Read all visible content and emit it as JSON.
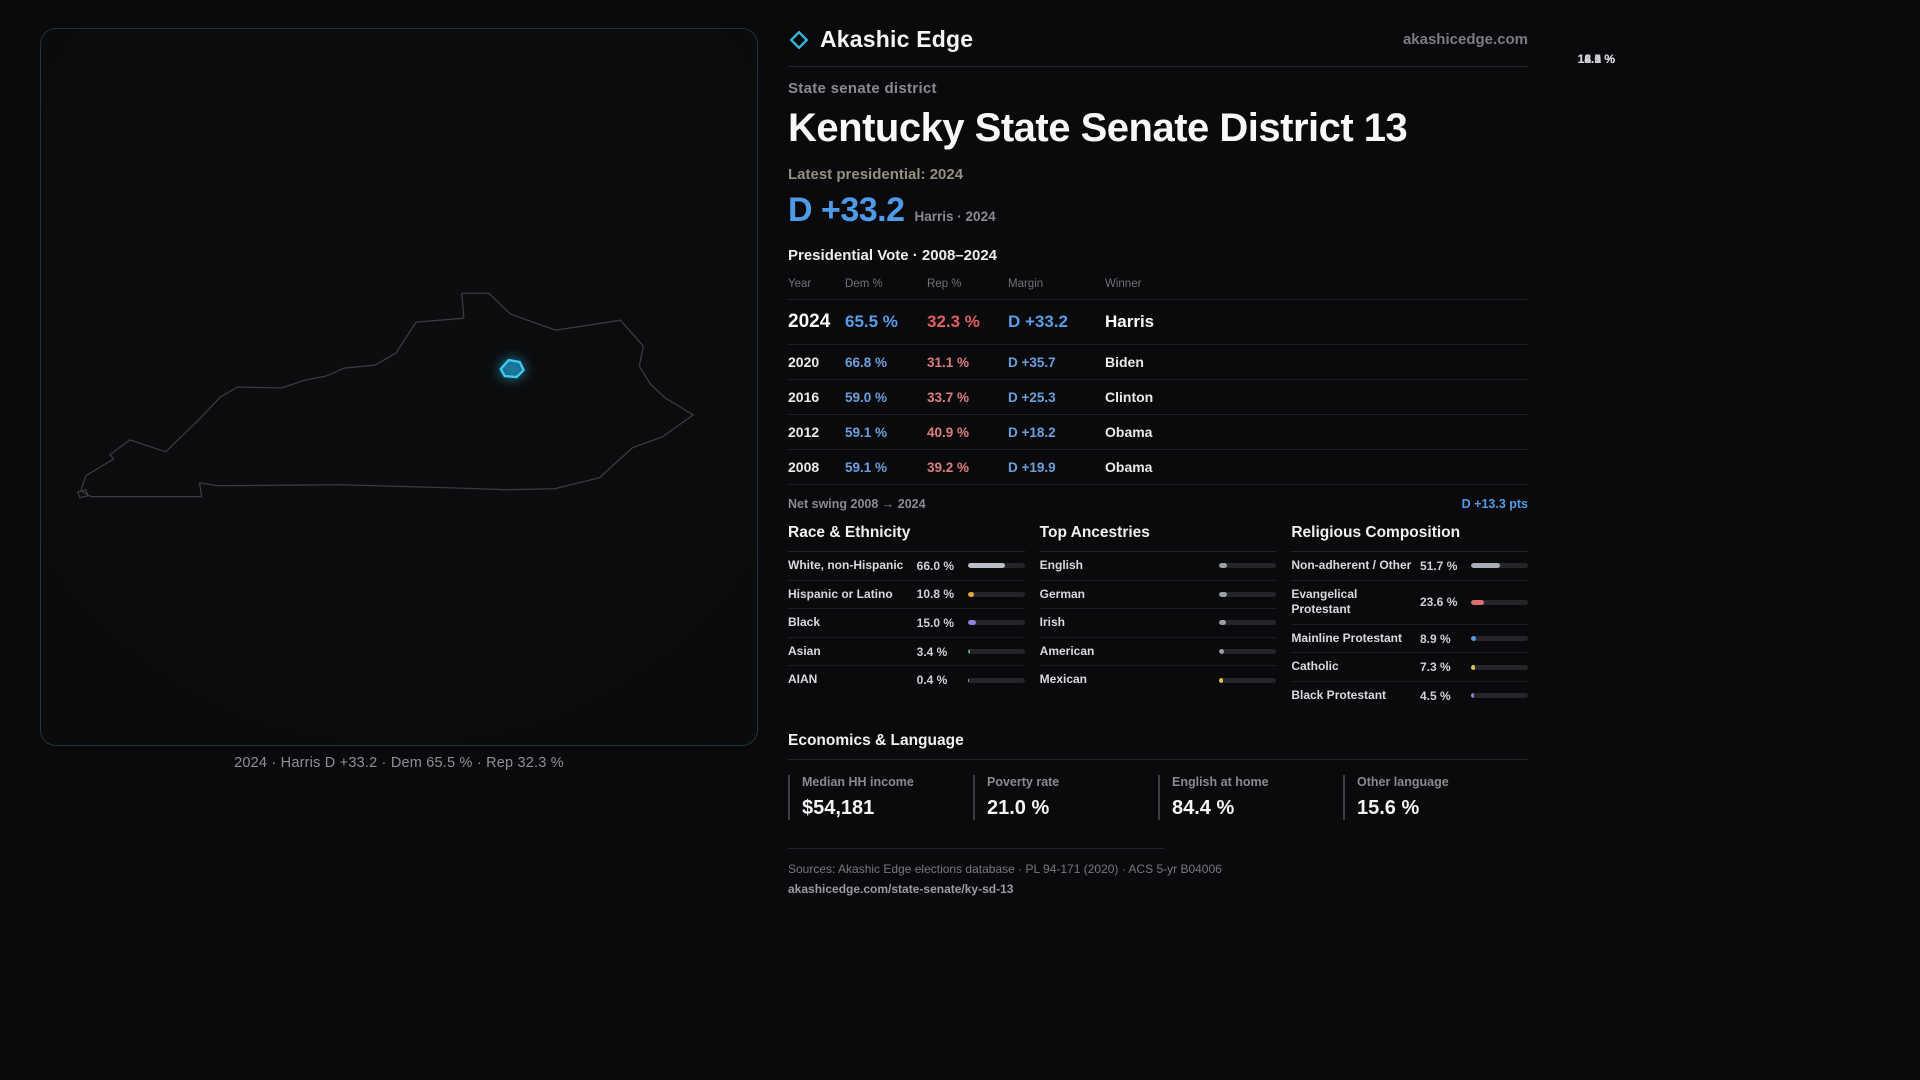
{
  "brand": {
    "name": "Akashic Edge",
    "domain": "akashicedge.com"
  },
  "map": {
    "caption": "2024 · Harris D +33.2 · Dem 65.5 % · Rep 32.3 %",
    "highlight_color": "#3ec9f5"
  },
  "district": {
    "type_label": "State senate district",
    "title": "Kentucky State Senate District 13",
    "latest_label": "Latest presidential: 2024",
    "headline_margin": "D +33.2",
    "headline_context": "Harris · 2024"
  },
  "vote_table": {
    "title": "Presidential Vote · 2008–2024",
    "columns": [
      "Year",
      "Dem %",
      "Rep %",
      "Margin",
      "Winner"
    ],
    "rows": [
      {
        "year": "2024",
        "dem": "65.5 %",
        "rep": "32.3 %",
        "margin": "D +33.2",
        "winner": "Harris"
      },
      {
        "year": "2020",
        "dem": "66.8 %",
        "rep": "31.1 %",
        "margin": "D +35.7",
        "winner": "Biden"
      },
      {
        "year": "2016",
        "dem": "59.0 %",
        "rep": "33.7 %",
        "margin": "D +25.3",
        "winner": "Clinton"
      },
      {
        "year": "2012",
        "dem": "59.1 %",
        "rep": "40.9 %",
        "margin": "D +18.2",
        "winner": "Obama"
      },
      {
        "year": "2008",
        "dem": "59.1 %",
        "rep": "39.2 %",
        "margin": "D +19.9",
        "winner": "Obama"
      }
    ]
  },
  "net_swing": {
    "label": "Net swing 2008 → 2024",
    "value": "D +13.3 pts"
  },
  "demographics": {
    "race": {
      "title": "Race & Ethnicity",
      "rows": [
        {
          "label": "White, non-Hispanic",
          "value": "66.0 %",
          "pct": 66.0,
          "color": "#b9bec7"
        },
        {
          "label": "Hispanic or Latino",
          "value": "10.8 %",
          "pct": 10.8,
          "color": "#e2a43e"
        },
        {
          "label": "Black",
          "value": "15.0 %",
          "pct": 15.0,
          "color": "#8f82dd"
        },
        {
          "label": "Asian",
          "value": "3.4 %",
          "pct": 3.4,
          "color": "#4fae7e"
        },
        {
          "label": "AIAN",
          "value": "0.4 %",
          "pct": 0.4,
          "color": "#9aa0a8"
        }
      ]
    },
    "ancestries": {
      "title": "Top Ancestries",
      "rows": [
        {
          "label": "English",
          "value": "14.1 %",
          "pct": 14.1,
          "color": "#9aa0a8"
        },
        {
          "label": "German",
          "value": "12.6 %",
          "pct": 12.6,
          "color": "#9aa0a8"
        },
        {
          "label": "Irish",
          "value": "12.0 %",
          "pct": 12.0,
          "color": "#9aa0a8"
        },
        {
          "label": "American",
          "value": "8.1 %",
          "pct": 8.1,
          "color": "#9aa0a8"
        },
        {
          "label": "Mexican",
          "value": "6.5 %",
          "pct": 6.5,
          "color": "#e2c14a"
        }
      ]
    },
    "religion": {
      "title": "Religious Composition",
      "rows": [
        {
          "label": "Non-adherent / Other",
          "value": "51.7 %",
          "pct": 51.7,
          "color": "#a9aeb6"
        },
        {
          "label": "Evangelical Protestant",
          "value": "23.6 %",
          "pct": 23.6,
          "color": "#e06d6d"
        },
        {
          "label": "Mainline Protestant",
          "value": "8.9 %",
          "pct": 8.9,
          "color": "#5b9ce8"
        },
        {
          "label": "Catholic",
          "value": "7.3 %",
          "pct": 7.3,
          "color": "#e2c14a"
        },
        {
          "label": "Black Protestant",
          "value": "4.5 %",
          "pct": 4.5,
          "color": "#8f82dd"
        }
      ]
    }
  },
  "economics": {
    "title": "Economics & Language",
    "stats": [
      {
        "label": "Median HH income",
        "value": "$54,181"
      },
      {
        "label": "Poverty rate",
        "value": "21.0 %"
      },
      {
        "label": "English at home",
        "value": "84.4 %"
      },
      {
        "label": "Other language",
        "value": "15.6 %"
      }
    ]
  },
  "footer": {
    "sources": "Sources: Akashic Edge elections database · PL 94-171 (2020) · ACS 5-yr B04006",
    "permalink": "akashicedge.com/state-senate/ky-sd-13"
  },
  "chart_data": [
    {
      "type": "table",
      "title": "Presidential Vote · 2008–2024",
      "columns": [
        "Year",
        "Dem %",
        "Rep %",
        "Margin",
        "Winner"
      ],
      "rows": [
        [
          "2024",
          65.5,
          32.3,
          "D +33.2",
          "Harris"
        ],
        [
          "2020",
          66.8,
          31.1,
          "D +35.7",
          "Biden"
        ],
        [
          "2016",
          59.0,
          33.7,
          "D +25.3",
          "Clinton"
        ],
        [
          "2012",
          59.1,
          40.9,
          "D +18.2",
          "Obama"
        ],
        [
          "2008",
          59.1,
          39.2,
          "D +19.9",
          "Obama"
        ]
      ],
      "annotations": [
        "Net swing 2008 → 2024: D +13.3 pts",
        "Latest presidential: 2024 — D +33.2 (Harris)"
      ]
    },
    {
      "type": "bar",
      "title": "Race & Ethnicity",
      "categories": [
        "White, non-Hispanic",
        "Hispanic or Latino",
        "Black",
        "Asian",
        "AIAN"
      ],
      "values": [
        66.0,
        10.8,
        15.0,
        3.4,
        0.4
      ],
      "unit": "%",
      "xlim": [
        0,
        100
      ]
    },
    {
      "type": "bar",
      "title": "Top Ancestries",
      "categories": [
        "English",
        "German",
        "Irish",
        "American",
        "Mexican"
      ],
      "values": [
        14.1,
        12.6,
        12.0,
        8.1,
        6.5
      ],
      "unit": "%",
      "xlim": [
        0,
        100
      ]
    },
    {
      "type": "bar",
      "title": "Religious Composition",
      "categories": [
        "Non-adherent / Other",
        "Evangelical Protestant",
        "Mainline Protestant",
        "Catholic",
        "Black Protestant"
      ],
      "values": [
        51.7,
        23.6,
        8.9,
        7.3,
        4.5
      ],
      "unit": "%",
      "xlim": [
        0,
        100
      ]
    },
    {
      "type": "table",
      "title": "Economics & Language",
      "columns": [
        "Median HH income",
        "Poverty rate",
        "English at home",
        "Other language"
      ],
      "rows": [
        [
          "$54,181",
          "21.0 %",
          "84.4 %",
          "15.6 %"
        ]
      ]
    }
  ]
}
